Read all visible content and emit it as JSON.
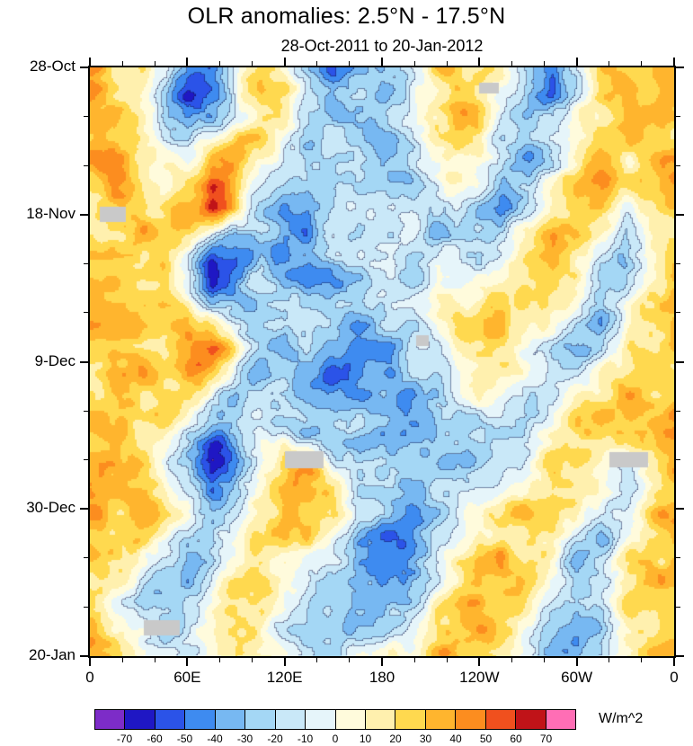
{
  "chart_data": {
    "type": "heatmap",
    "title": "OLR anomalies: 2.5°N - 17.5°N",
    "subtitle": "28-Oct-2011 to 20-Jan-2012",
    "units": "W/m^2",
    "xlabel": "",
    "ylabel": "",
    "x_range": [
      0,
      360
    ],
    "y_range": [
      0,
      84
    ],
    "x_ticks": {
      "values": [
        0,
        60,
        120,
        180,
        240,
        300,
        360
      ],
      "labels": [
        "0",
        "60E",
        "120E",
        "180",
        "120W",
        "60W",
        "0"
      ]
    },
    "y_ticks": {
      "values": [
        0,
        21,
        42,
        63,
        84
      ],
      "labels": [
        "28-Oct",
        "18-Nov",
        "9-Dec",
        "30-Dec",
        "20-Jan"
      ]
    },
    "x_minor_step": 20,
    "y_minor_step": 7,
    "levels": [
      -70,
      -60,
      -50,
      -40,
      -30,
      -20,
      -10,
      0,
      10,
      20,
      30,
      40,
      50,
      60,
      70
    ],
    "colors": [
      "#7D2CC8",
      "#1F17C4",
      "#2B53E8",
      "#3E8BF0",
      "#77B8F2",
      "#A4D7F5",
      "#C9E8F8",
      "#E6F5FA",
      "#FFFBDC",
      "#FFF0AE",
      "#FFD94F",
      "#FFB52E",
      "#FC8D1F",
      "#F0501E",
      "#C01318",
      "#FF6EB5"
    ],
    "colorbar_labels": [
      "-70",
      "-60",
      "-50",
      "-40",
      "-30",
      "-20",
      "-10",
      "0",
      "10",
      "20",
      "30",
      "40",
      "50",
      "60",
      "70"
    ],
    "missing_color": "#C9C9C9",
    "missing_regions": [
      {
        "lon": 14,
        "day": 21,
        "w": 16,
        "h": 2.2
      },
      {
        "lon": 246,
        "day": 3,
        "w": 12,
        "h": 1.6
      },
      {
        "lon": 205,
        "day": 39,
        "w": 8,
        "h": 1.6
      },
      {
        "lon": 132,
        "day": 56,
        "w": 24,
        "h": 2.4
      },
      {
        "lon": 332,
        "day": 56,
        "w": 24,
        "h": 2.2
      },
      {
        "lon": 44,
        "day": 80,
        "w": 22,
        "h": 2.2
      }
    ],
    "grid": {
      "lon_start": 0,
      "lon_step": 15,
      "day_start": 0,
      "day_step": 4,
      "values": [
        [
          35,
          25,
          10,
          -15,
          -45,
          -35,
          5,
          30,
          20,
          -20,
          -45,
          -25,
          -35,
          -15,
          15,
          30,
          25,
          5,
          -25,
          -50,
          -20,
          25,
          40,
          20,
          35
        ],
        [
          30,
          20,
          5,
          -25,
          -55,
          -40,
          0,
          25,
          15,
          -25,
          -40,
          -30,
          -25,
          -20,
          10,
          35,
          30,
          0,
          -30,
          -45,
          -10,
          20,
          35,
          25,
          30
        ],
        [
          25,
          30,
          15,
          -10,
          -35,
          -25,
          10,
          20,
          5,
          -15,
          -30,
          -35,
          -30,
          -10,
          20,
          30,
          20,
          -10,
          -20,
          -25,
          5,
          15,
          25,
          30,
          25
        ],
        [
          35,
          40,
          25,
          5,
          -15,
          20,
          35,
          15,
          -10,
          -25,
          -15,
          -20,
          -35,
          -25,
          5,
          20,
          10,
          -20,
          -35,
          -15,
          15,
          25,
          20,
          25,
          35
        ],
        [
          30,
          35,
          30,
          10,
          25,
          55,
          25,
          -5,
          -20,
          -30,
          -25,
          -10,
          -20,
          -30,
          -10,
          10,
          -5,
          -30,
          -25,
          0,
          25,
          35,
          15,
          20,
          30
        ],
        [
          25,
          30,
          35,
          20,
          35,
          62,
          20,
          -15,
          -35,
          -40,
          -20,
          -15,
          -10,
          -20,
          -25,
          -5,
          -20,
          -35,
          -10,
          20,
          35,
          25,
          -10,
          10,
          25
        ],
        [
          20,
          25,
          30,
          25,
          15,
          -20,
          -40,
          -30,
          -45,
          -35,
          -15,
          -25,
          -20,
          -10,
          -30,
          -20,
          -25,
          -15,
          10,
          30,
          25,
          0,
          -25,
          5,
          20
        ],
        [
          25,
          20,
          25,
          30,
          -10,
          -68,
          -50,
          -20,
          -35,
          -45,
          -30,
          -20,
          -15,
          -25,
          -15,
          -10,
          -15,
          5,
          25,
          35,
          10,
          -20,
          -30,
          0,
          25
        ],
        [
          30,
          25,
          20,
          25,
          0,
          -55,
          -35,
          -10,
          -20,
          -30,
          -35,
          -25,
          -20,
          -15,
          -5,
          5,
          10,
          20,
          30,
          20,
          -5,
          -25,
          -15,
          15,
          30
        ],
        [
          35,
          30,
          25,
          15,
          25,
          10,
          -15,
          -25,
          -30,
          -20,
          -25,
          -35,
          -30,
          -20,
          -10,
          15,
          25,
          30,
          20,
          0,
          -20,
          -30,
          0,
          25,
          35
        ],
        [
          30,
          35,
          30,
          20,
          45,
          55,
          15,
          -20,
          -35,
          -30,
          -40,
          -50,
          -35,
          -25,
          -15,
          5,
          20,
          25,
          5,
          -15,
          -30,
          -15,
          15,
          30,
          30
        ],
        [
          25,
          30,
          35,
          25,
          30,
          20,
          -10,
          -30,
          -25,
          -35,
          -55,
          -45,
          -30,
          -35,
          -20,
          -5,
          10,
          5,
          -10,
          -25,
          -20,
          5,
          25,
          35,
          25
        ],
        [
          30,
          25,
          30,
          30,
          15,
          -15,
          -30,
          -20,
          -15,
          -25,
          -35,
          -30,
          -40,
          -45,
          -30,
          -15,
          -5,
          -15,
          -25,
          -15,
          10,
          25,
          30,
          30,
          30
        ],
        [
          35,
          30,
          25,
          20,
          -10,
          -35,
          -25,
          -10,
          -20,
          -30,
          -20,
          -15,
          -30,
          -35,
          -40,
          -25,
          -20,
          -30,
          -15,
          5,
          25,
          30,
          20,
          25,
          35
        ],
        [
          30,
          25,
          20,
          10,
          -25,
          -72,
          -45,
          -15,
          25,
          35,
          -10,
          -25,
          -15,
          -20,
          -30,
          -35,
          -25,
          -15,
          0,
          20,
          30,
          15,
          -10,
          15,
          30
        ],
        [
          35,
          30,
          25,
          15,
          -15,
          -55,
          -30,
          5,
          40,
          45,
          20,
          -15,
          -25,
          -30,
          -20,
          -25,
          -10,
          5,
          15,
          30,
          20,
          -5,
          -20,
          10,
          35
        ],
        [
          40,
          35,
          30,
          20,
          0,
          -30,
          -15,
          15,
          35,
          40,
          30,
          -5,
          -30,
          -40,
          -25,
          -10,
          5,
          20,
          30,
          25,
          0,
          -20,
          -10,
          20,
          40
        ],
        [
          35,
          30,
          20,
          -5,
          -25,
          -20,
          0,
          20,
          25,
          15,
          -10,
          -30,
          -45,
          -50,
          -30,
          -5,
          15,
          30,
          25,
          5,
          -20,
          -30,
          5,
          30,
          35
        ],
        [
          30,
          20,
          5,
          -20,
          -35,
          -15,
          10,
          15,
          10,
          -15,
          -25,
          -40,
          -50,
          -35,
          -15,
          10,
          25,
          35,
          15,
          -10,
          -30,
          -20,
          15,
          30,
          30
        ],
        [
          25,
          10,
          -15,
          -30,
          -25,
          -5,
          15,
          20,
          -5,
          -25,
          -35,
          -30,
          -35,
          -20,
          0,
          20,
          35,
          30,
          5,
          -20,
          -35,
          -10,
          20,
          25,
          25
        ],
        [
          30,
          15,
          -5,
          -25,
          -20,
          5,
          20,
          10,
          -15,
          -30,
          -25,
          -20,
          -15,
          -5,
          15,
          30,
          40,
          20,
          -5,
          -25,
          -45,
          -25,
          10,
          25,
          30
        ],
        [
          35,
          25,
          5,
          -15,
          -10,
          10,
          25,
          15,
          -5,
          -20,
          -15,
          -10,
          -5,
          10,
          25,
          35,
          30,
          10,
          -15,
          -30,
          -35,
          -15,
          15,
          30,
          35
        ]
      ]
    },
    "layout": {
      "noise_seed": 11,
      "noise_amp": 12,
      "legend": "bottom-colorbar",
      "grid_lines": "off",
      "frame": "box-with-outward-ticks"
    }
  }
}
